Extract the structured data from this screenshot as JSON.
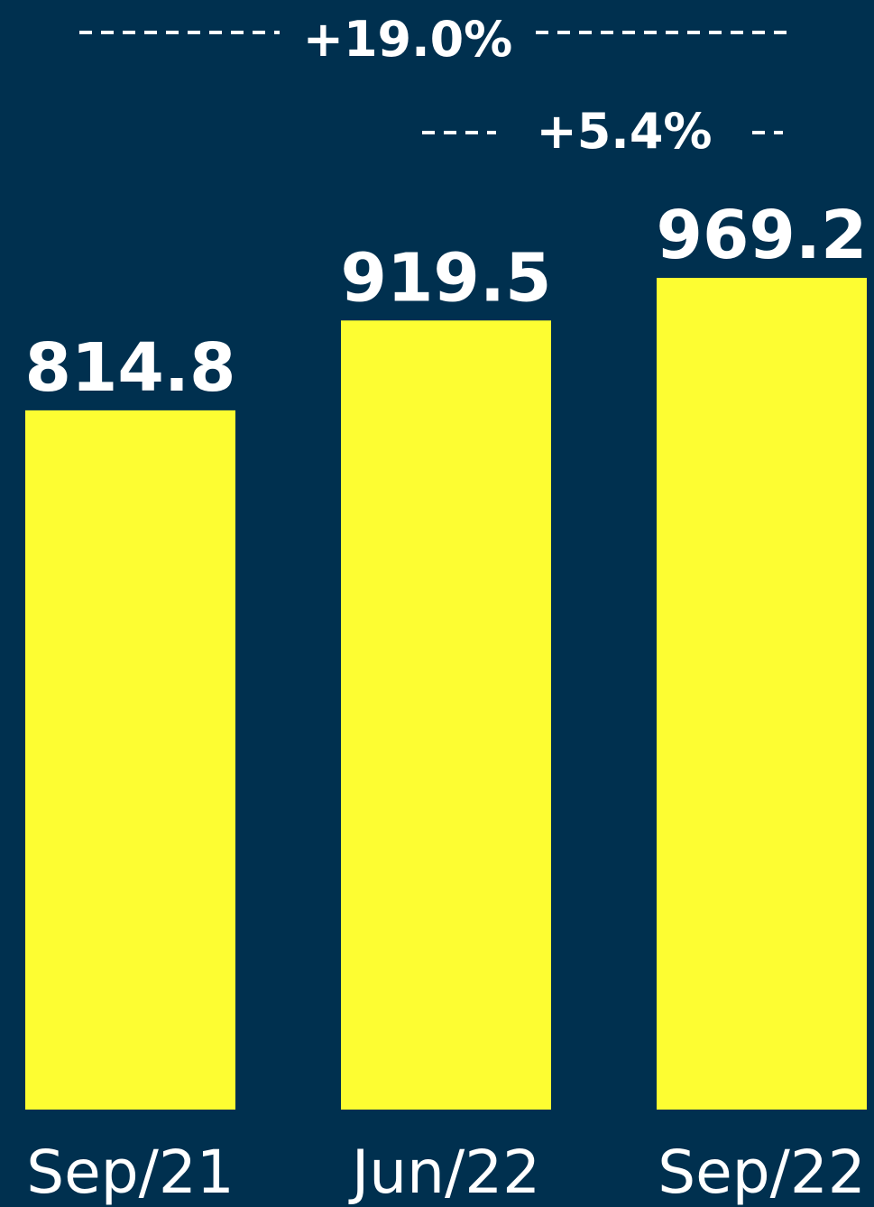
{
  "chart_data": {
    "type": "bar",
    "categories": [
      "Sep/21",
      "Jun/22",
      "Sep/22"
    ],
    "values": [
      814.8,
      919.5,
      969.2
    ],
    "value_labels": [
      "814.8",
      "919.5",
      "969.2"
    ],
    "title": "",
    "xlabel": "",
    "ylabel": "",
    "ylim": [
      0,
      969.2
    ],
    "grid": false,
    "annotations": [
      {
        "label": "+19.0%",
        "from": "Sep/21",
        "to": "Sep/22"
      },
      {
        "label": "+5.4%",
        "from": "Jun/22",
        "to": "Sep/22"
      }
    ]
  },
  "colors": {
    "background": "#00304f",
    "bar": "#fdfd32",
    "text": "#ffffff"
  }
}
